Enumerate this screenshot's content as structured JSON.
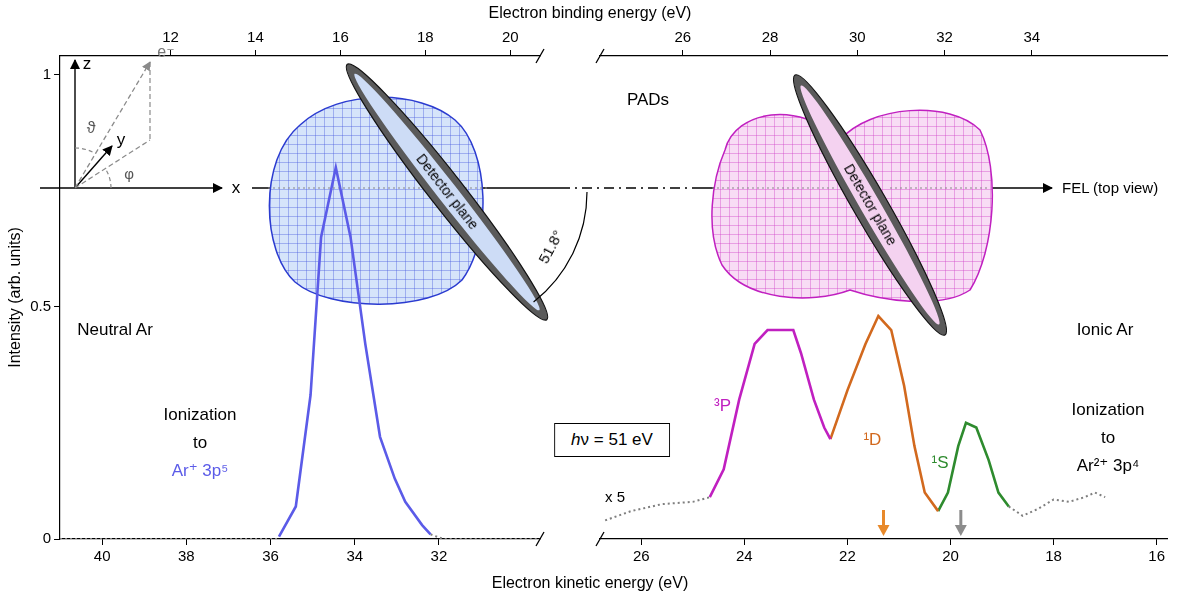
{
  "figure": {
    "x_label_top": "Electron binding energy (eV)",
    "x_label_bottom": "Electron kinetic energy (eV)",
    "y_label": "Intensity (arb. units)",
    "photon_energy": "hν = 51 eV",
    "pads_label": "PADs",
    "detector_plane": "Detector plane",
    "angle_label": "51.8°",
    "beam_label": "FEL (top view)",
    "axes_inset": {
      "x": "x",
      "y": "y",
      "z": "z",
      "theta": "ϑ",
      "phi": "φ",
      "electron": "e⁻"
    }
  },
  "chart_data": [
    {
      "type": "line",
      "label": "Neutral Ar",
      "annotation": [
        "Ionization",
        "to"
      ],
      "state": {
        "text": "Ar⁺ 3p⁵",
        "color": "#5b5be8"
      },
      "xlim": [
        41,
        29.6
      ],
      "xticks": [
        40,
        38,
        36,
        34,
        32
      ],
      "x2lim": [
        9.4,
        20.7
      ],
      "x2ticks": [
        12,
        14,
        16,
        18,
        20
      ],
      "ylim": [
        0,
        1.04
      ],
      "yticks": [
        0,
        0.5,
        1
      ],
      "grid": false,
      "series": [
        {
          "color": "#7f7f7f",
          "line_style": "dotted",
          "x": [
            41,
            35.8
          ],
          "values": [
            0,
            0
          ]
        },
        {
          "color": "#5b5be8",
          "line_style": "solid",
          "x": [
            35.8,
            35.4,
            35.05,
            34.8,
            34.45,
            34.1,
            33.75,
            33.4,
            33.05,
            32.8,
            32.4,
            32.2
          ],
          "values": [
            0.005,
            0.07,
            0.31,
            0.65,
            0.8,
            0.65,
            0.42,
            0.22,
            0.13,
            0.08,
            0.03,
            0.01
          ]
        },
        {
          "color": "#7f7f7f",
          "line_style": "dotted",
          "x": [
            32.2,
            31.9,
            29.6
          ],
          "values": [
            0.01,
            0,
            0
          ]
        }
      ]
    },
    {
      "type": "line",
      "label": "Ionic Ar",
      "annotation": [
        "Ionization",
        "to"
      ],
      "state": {
        "text": "Ar²⁺ 3p⁴",
        "color": "#000000"
      },
      "scale_note": "x 5",
      "xlim": [
        26.8,
        15.8
      ],
      "xticks": [
        26,
        24,
        22,
        20,
        18,
        16
      ],
      "x2lim": [
        24.1,
        37.1
      ],
      "x2ticks": [
        26,
        28,
        30,
        32,
        34
      ],
      "ylim": [
        0,
        1.04
      ],
      "tick_labels": "x",
      "grid": false,
      "markers": [
        {
          "x": 21.3,
          "color": "#e8892a"
        },
        {
          "x": 19.8,
          "color": "#8c8c8c"
        }
      ],
      "series": [
        {
          "color": "#7f7f7f",
          "line_style": "dotted",
          "x": [
            26.7,
            26.2,
            25.6,
            25.0,
            24.67
          ],
          "values": [
            0.04,
            0.06,
            0.075,
            0.08,
            0.09
          ]
        },
        {
          "name": "³P",
          "color": "#c020c0",
          "line_style": "solid",
          "x": [
            24.67,
            24.4,
            24.1,
            23.8,
            23.55,
            23.05,
            22.9,
            22.65,
            22.45,
            22.33
          ],
          "values": [
            0.09,
            0.15,
            0.3,
            0.42,
            0.45,
            0.45,
            0.4,
            0.3,
            0.24,
            0.215
          ]
        },
        {
          "name": "¹D",
          "color": "#d2691e",
          "line_style": "solid",
          "x": [
            22.33,
            22.0,
            21.65,
            21.4,
            21.15,
            20.9,
            20.7,
            20.5,
            20.24
          ],
          "values": [
            0.215,
            0.32,
            0.42,
            0.48,
            0.45,
            0.33,
            0.2,
            0.1,
            0.06
          ]
        },
        {
          "name": "¹S",
          "color": "#2e8b2e",
          "line_style": "solid",
          "x": [
            20.24,
            20.05,
            19.85,
            19.7,
            19.5,
            19.26,
            19.07,
            18.87
          ],
          "values": [
            0.06,
            0.1,
            0.2,
            0.25,
            0.24,
            0.17,
            0.1,
            0.07
          ]
        },
        {
          "color": "#7f7f7f",
          "line_style": "dotted",
          "x": [
            18.87,
            18.6,
            18.3,
            18.0,
            17.7,
            17.4,
            17.2,
            17.0
          ],
          "values": [
            0.07,
            0.05,
            0.065,
            0.085,
            0.08,
            0.09,
            0.1,
            0.09
          ]
        }
      ]
    }
  ]
}
